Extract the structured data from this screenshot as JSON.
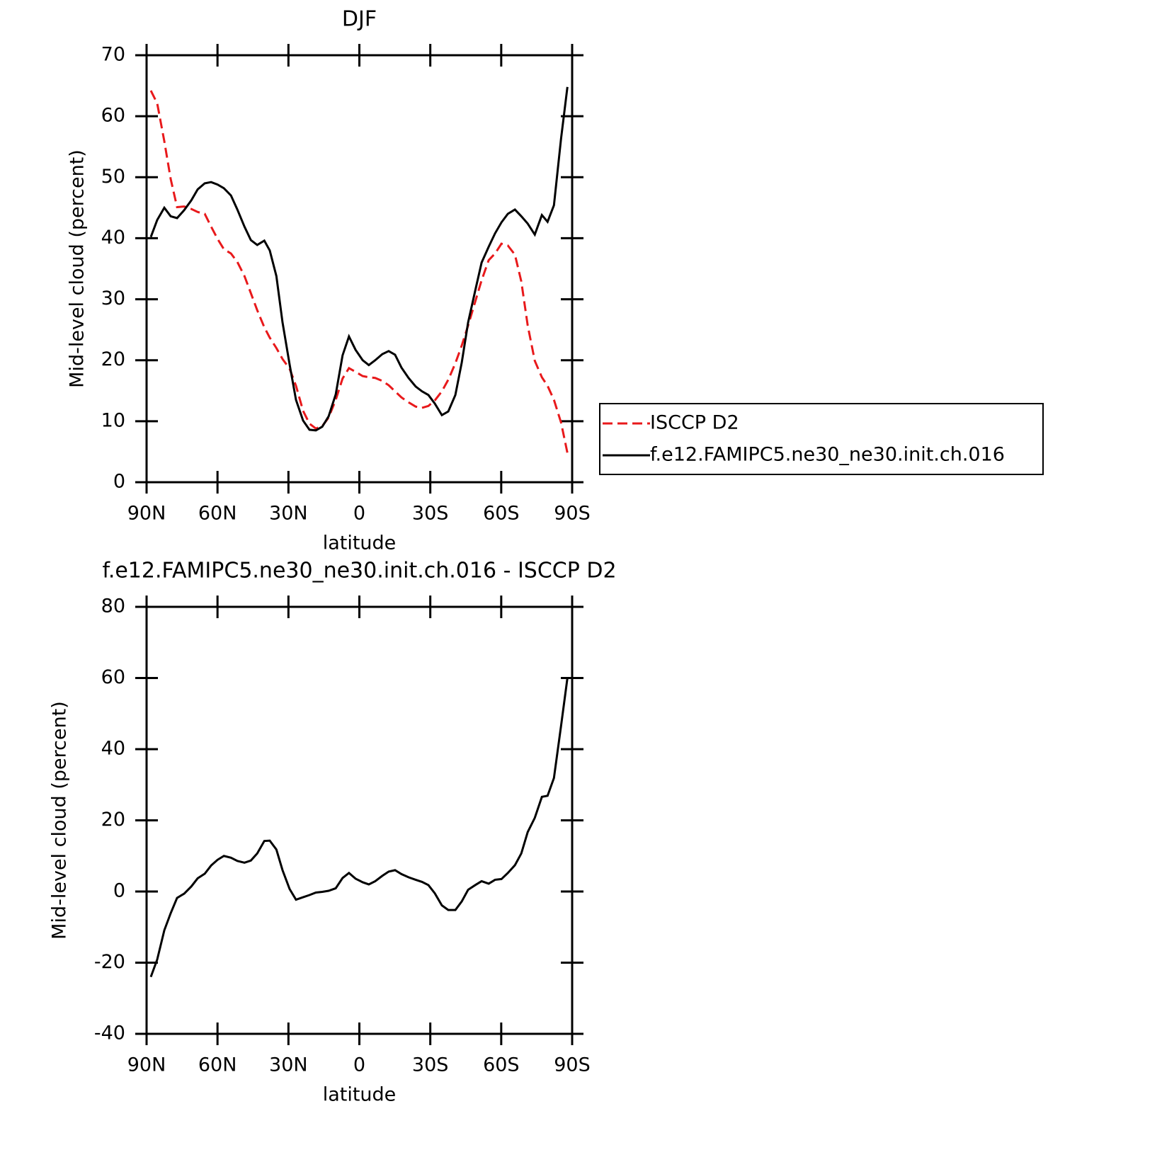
{
  "chart_data": [
    {
      "type": "line",
      "title": "DJF",
      "xlabel": "latitude",
      "ylabel": "Mid-level cloud (percent)",
      "x": [
        88.2,
        85.5,
        82.5,
        79.8,
        77.1,
        74.1,
        71.1,
        68.4,
        65.4,
        62.7,
        60,
        57.3,
        54.3,
        51.6,
        48.6,
        45.9,
        43.2,
        40.2,
        37.9,
        35.1,
        32.5,
        29.5,
        26.8,
        23.8,
        21.1,
        18.4,
        15.7,
        13,
        10,
        7.1,
        4.4,
        1.6,
        -1.4,
        -4,
        -6.7,
        -9.7,
        -12.4,
        -15.1,
        -17.8,
        -20.8,
        -23.8,
        -26.5,
        -29.2,
        -31.9,
        -34.9,
        -37.6,
        -40.6,
        -43.3,
        -46,
        -49,
        -51.7,
        -54.7,
        -57.4,
        -60.1,
        -62.8,
        -65.8,
        -68.5,
        -71.2,
        -74.2,
        -77.2,
        -79.6,
        -82.3,
        -85.3,
        -88
      ],
      "series": [
        {
          "name": "ISCCP D2",
          "color": "#e8191b",
          "dash": true,
          "values": [
            64.2,
            62.1,
            55.9,
            49.7,
            45.1,
            45.2,
            44.8,
            44.3,
            44,
            41.9,
            39.9,
            38.2,
            37.5,
            36.1,
            33.8,
            31,
            28.2,
            25.4,
            23.7,
            22,
            20.2,
            18.6,
            15.8,
            11.7,
            9.6,
            8.8,
            9.2,
            10.6,
            13.5,
            17,
            18.7,
            18.1,
            17.4,
            17.2,
            17.1,
            16.6,
            15.9,
            14.9,
            13.9,
            13.1,
            12.4,
            12.2,
            12.5,
            13.4,
            14.9,
            16.8,
            19.5,
            22.4,
            25.7,
            29.6,
            33.1,
            36.4,
            37.5,
            39.1,
            38.8,
            37.3,
            32.9,
            25.7,
            19.9,
            17.2,
            15.8,
            13.5,
            9.8,
            4.8
          ]
        },
        {
          "name": "f.e12.FAMIPC5.ne30_ne30.init.ch.016",
          "color": "#000000",
          "dash": false,
          "values": [
            40.2,
            43,
            45,
            43.6,
            43.3,
            44.6,
            46.2,
            48,
            49,
            49.2,
            48.8,
            48.2,
            47,
            44.7,
            41.9,
            39.7,
            38.9,
            39.6,
            38,
            33.8,
            26.2,
            19.3,
            13.5,
            10.1,
            8.6,
            8.5,
            9.1,
            10.8,
            14.4,
            20.8,
            23.9,
            21.7,
            20,
            19.2,
            20,
            21,
            21.5,
            20.9,
            18.8,
            17.1,
            15.7,
            14.9,
            14.3,
            12.9,
            11,
            11.6,
            14.3,
            19.6,
            26.2,
            31.4,
            36,
            38.6,
            40.8,
            42.6,
            44,
            44.7,
            43.6,
            42.4,
            40.6,
            43.8,
            42.7,
            45.4,
            56.3,
            64.8
          ]
        }
      ],
      "xlim": [
        90,
        -90
      ],
      "xticks": [
        {
          "value": 90,
          "label": "90N"
        },
        {
          "value": 60,
          "label": "60N"
        },
        {
          "value": 30,
          "label": "30N"
        },
        0,
        {
          "value": -30,
          "label": "30S"
        },
        {
          "value": -60,
          "label": "60S"
        },
        {
          "value": -90,
          "label": "90S"
        }
      ],
      "ylim": [
        0,
        70
      ],
      "yticks": [
        0,
        10,
        20,
        30,
        40,
        50,
        60,
        70
      ],
      "legend": "right"
    },
    {
      "type": "line",
      "title": "f.e12.FAMIPC5.ne30_ne30.init.ch.016 - ISCCP D2",
      "xlabel": "latitude",
      "ylabel": "Mid-level cloud (percent)",
      "x": [
        88.2,
        85.5,
        82.5,
        79.8,
        77.1,
        74.1,
        71.1,
        68.4,
        65.4,
        62.7,
        60,
        57.3,
        54.3,
        51.6,
        48.6,
        45.9,
        43.2,
        40.2,
        37.9,
        35.1,
        32.5,
        29.5,
        26.8,
        23.8,
        21.1,
        18.4,
        15.7,
        13,
        10,
        7.1,
        4.4,
        1.6,
        -1.4,
        -4,
        -6.7,
        -9.7,
        -12.4,
        -15.1,
        -17.8,
        -20.8,
        -23.8,
        -26.5,
        -29.2,
        -31.9,
        -34.9,
        -37.6,
        -40.6,
        -43.3,
        -46,
        -49,
        -51.7,
        -54.7,
        -57.4,
        -60.1,
        -62.8,
        -65.8,
        -68.5,
        -71.2,
        -74.2,
        -77.2,
        -79.6,
        -82.3,
        -85.3,
        -88
      ],
      "values": [
        -24,
        -19.1,
        -10.9,
        -6.1,
        -1.8,
        -0.6,
        1.4,
        3.7,
        5,
        7.3,
        8.9,
        10,
        9.5,
        8.6,
        8.1,
        8.7,
        10.7,
        14.2,
        14.3,
        11.8,
        6,
        0.7,
        -2.3,
        -1.6,
        -1,
        -0.3,
        -0.1,
        0.2,
        0.9,
        3.8,
        5.2,
        3.6,
        2.6,
        2,
        2.9,
        4.4,
        5.6,
        6,
        4.9,
        4,
        3.3,
        2.7,
        1.8,
        -0.5,
        -3.9,
        -5.2,
        -5.2,
        -2.8,
        0.5,
        1.8,
        2.9,
        2.2,
        3.3,
        3.5,
        5.2,
        7.4,
        10.7,
        16.7,
        20.7,
        26.6,
        26.9,
        31.9,
        46.5,
        60
      ],
      "color": "#000000",
      "xlim": [
        90,
        -90
      ],
      "xticks": [
        {
          "value": 90,
          "label": "90N"
        },
        {
          "value": 60,
          "label": "60N"
        },
        {
          "value": 30,
          "label": "30N"
        },
        0,
        {
          "value": -30,
          "label": "30S"
        },
        {
          "value": -60,
          "label": "60S"
        },
        {
          "value": -90,
          "label": "90S"
        }
      ],
      "ylim": [
        -40,
        80
      ],
      "yticks": [
        -40,
        -20,
        0,
        20,
        40,
        60,
        80
      ]
    }
  ]
}
